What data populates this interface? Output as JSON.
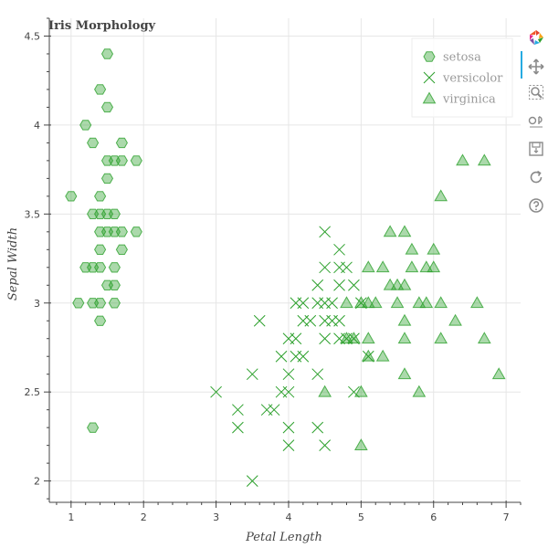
{
  "chart_data": {
    "type": "scatter",
    "title": "Iris Morphology",
    "xlabel": "Petal Length",
    "ylabel": "Sepal Width",
    "xlim": [
      0.7,
      7.2
    ],
    "ylim": [
      1.88,
      4.6
    ],
    "xticks": [
      1,
      2,
      3,
      4,
      5,
      6,
      7
    ],
    "yticks": [
      2,
      2.5,
      3,
      3.5,
      4,
      4.5
    ],
    "ytick_labels": [
      "2",
      "2.5",
      "3",
      "3.5",
      "4",
      "4.5"
    ],
    "grid": true,
    "legend_position": "top-right",
    "series": [
      {
        "name": "setosa",
        "marker": "hex",
        "color": "#2ca02c",
        "points": [
          [
            1.5,
            4.4
          ],
          [
            1.4,
            4.2
          ],
          [
            1.5,
            4.1
          ],
          [
            1.2,
            4.0
          ],
          [
            1.3,
            3.9
          ],
          [
            1.7,
            3.9
          ],
          [
            1.5,
            3.8
          ],
          [
            1.6,
            3.8
          ],
          [
            1.7,
            3.8
          ],
          [
            1.9,
            3.8
          ],
          [
            1.5,
            3.7
          ],
          [
            1.4,
            3.6
          ],
          [
            1.0,
            3.6
          ],
          [
            1.3,
            3.5
          ],
          [
            1.4,
            3.5
          ],
          [
            1.5,
            3.5
          ],
          [
            1.6,
            3.5
          ],
          [
            1.4,
            3.4
          ],
          [
            1.5,
            3.4
          ],
          [
            1.6,
            3.4
          ],
          [
            1.7,
            3.4
          ],
          [
            1.9,
            3.4
          ],
          [
            1.4,
            3.3
          ],
          [
            1.7,
            3.3
          ],
          [
            1.2,
            3.2
          ],
          [
            1.3,
            3.2
          ],
          [
            1.4,
            3.2
          ],
          [
            1.6,
            3.2
          ],
          [
            1.5,
            3.1
          ],
          [
            1.6,
            3.1
          ],
          [
            1.4,
            3.0
          ],
          [
            1.1,
            3.0
          ],
          [
            1.3,
            3.0
          ],
          [
            1.6,
            3.0
          ],
          [
            1.4,
            2.9
          ],
          [
            1.3,
            2.3
          ]
        ]
      },
      {
        "name": "versicolor",
        "marker": "x",
        "color": "#2ca02c",
        "points": [
          [
            4.5,
            3.4
          ],
          [
            4.7,
            3.3
          ],
          [
            4.5,
            3.2
          ],
          [
            4.7,
            3.2
          ],
          [
            4.8,
            3.2
          ],
          [
            4.4,
            3.1
          ],
          [
            4.7,
            3.1
          ],
          [
            4.9,
            3.1
          ],
          [
            4.1,
            3.0
          ],
          [
            4.2,
            3.0
          ],
          [
            4.4,
            3.0
          ],
          [
            4.5,
            3.0
          ],
          [
            4.6,
            3.0
          ],
          [
            5.0,
            3.0
          ],
          [
            4.2,
            2.9
          ],
          [
            4.3,
            2.9
          ],
          [
            4.5,
            2.9
          ],
          [
            4.6,
            2.9
          ],
          [
            4.7,
            2.9
          ],
          [
            3.6,
            2.9
          ],
          [
            4.0,
            2.8
          ],
          [
            4.5,
            2.8
          ],
          [
            4.7,
            2.8
          ],
          [
            4.8,
            2.8
          ],
          [
            4.9,
            2.8
          ],
          [
            4.1,
            2.8
          ],
          [
            3.9,
            2.7
          ],
          [
            4.1,
            2.7
          ],
          [
            4.2,
            2.7
          ],
          [
            5.1,
            2.7
          ],
          [
            3.5,
            2.6
          ],
          [
            4.0,
            2.6
          ],
          [
            4.4,
            2.6
          ],
          [
            3.0,
            2.5
          ],
          [
            3.9,
            2.5
          ],
          [
            4.0,
            2.5
          ],
          [
            4.9,
            2.5
          ],
          [
            3.3,
            2.4
          ],
          [
            3.7,
            2.4
          ],
          [
            3.8,
            2.4
          ],
          [
            3.3,
            2.3
          ],
          [
            4.0,
            2.3
          ],
          [
            4.4,
            2.3
          ],
          [
            4.0,
            2.2
          ],
          [
            4.5,
            2.2
          ],
          [
            3.5,
            2.0
          ]
        ]
      },
      {
        "name": "virginica",
        "marker": "triangle",
        "color": "#2ca02c",
        "points": [
          [
            6.4,
            3.8
          ],
          [
            6.7,
            3.8
          ],
          [
            6.1,
            3.6
          ],
          [
            5.4,
            3.4
          ],
          [
            5.6,
            3.4
          ],
          [
            5.7,
            3.3
          ],
          [
            6.0,
            3.3
          ],
          [
            5.1,
            3.2
          ],
          [
            5.3,
            3.2
          ],
          [
            5.7,
            3.2
          ],
          [
            5.9,
            3.2
          ],
          [
            6.0,
            3.2
          ],
          [
            5.4,
            3.1
          ],
          [
            5.5,
            3.1
          ],
          [
            5.6,
            3.1
          ],
          [
            4.8,
            3.0
          ],
          [
            5.0,
            3.0
          ],
          [
            5.1,
            3.0
          ],
          [
            5.2,
            3.0
          ],
          [
            5.5,
            3.0
          ],
          [
            5.8,
            3.0
          ],
          [
            5.9,
            3.0
          ],
          [
            6.1,
            3.0
          ],
          [
            6.6,
            3.0
          ],
          [
            5.6,
            2.9
          ],
          [
            6.3,
            2.9
          ],
          [
            4.8,
            2.8
          ],
          [
            4.9,
            2.8
          ],
          [
            5.1,
            2.8
          ],
          [
            5.6,
            2.8
          ],
          [
            6.1,
            2.8
          ],
          [
            6.7,
            2.8
          ],
          [
            5.1,
            2.7
          ],
          [
            5.3,
            2.7
          ],
          [
            5.6,
            2.6
          ],
          [
            6.9,
            2.6
          ],
          [
            4.5,
            2.5
          ],
          [
            5.0,
            2.5
          ],
          [
            5.8,
            2.5
          ],
          [
            5.0,
            2.2
          ]
        ]
      }
    ]
  },
  "toolbar": {
    "logo": "bokeh-logo-icon",
    "tools": [
      "pan-icon",
      "box-zoom-icon",
      "wheel-zoom-icon",
      "save-icon",
      "reset-icon",
      "help-icon"
    ],
    "active_color": "#26aae1"
  }
}
